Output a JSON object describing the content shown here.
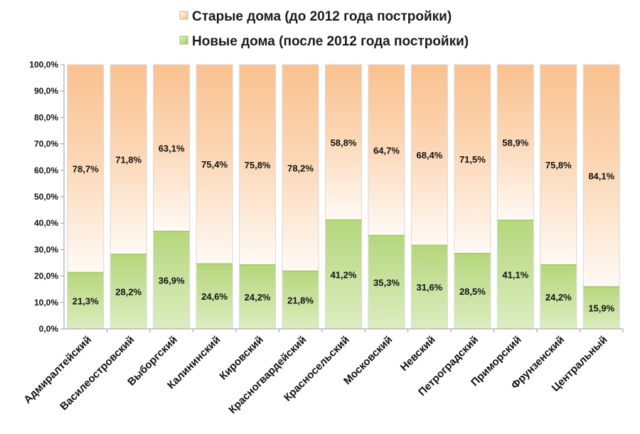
{
  "chart_data": {
    "type": "bar",
    "stacked": true,
    "percent": true,
    "categories": [
      "Адмиралтейский",
      "Василеостровский",
      "Выборгский",
      "Калининский",
      "Кировский",
      "Красногвардейский",
      "Красносельский",
      "Московский",
      "Невский",
      "Петроградский",
      "Приморский",
      "Фрунзенский",
      "Центральный"
    ],
    "series": [
      {
        "name": "Новые дома (после 2012 года постройки)",
        "values": [
          21.3,
          28.2,
          36.9,
          24.6,
          24.2,
          21.8,
          41.2,
          35.3,
          31.6,
          28.5,
          41.1,
          24.2,
          15.9
        ],
        "labels": [
          "21,3%",
          "28,2%",
          "36,9%",
          "24,6%",
          "24,2%",
          "21,8%",
          "41,2%",
          "35,3%",
          "31,6%",
          "28,5%",
          "41,1%",
          "24,2%",
          "15,9%"
        ],
        "color": "#c9e19c"
      },
      {
        "name": "Старые дома (до 2012 года постройки)",
        "values": [
          78.7,
          71.8,
          63.1,
          75.4,
          75.8,
          78.2,
          58.8,
          64.7,
          68.4,
          71.5,
          58.9,
          75.8,
          84.1
        ],
        "labels": [
          "78,7%",
          "71,8%",
          "63,1%",
          "75,4%",
          "75,8%",
          "78,2%",
          "58,8%",
          "64,7%",
          "68,4%",
          "71,5%",
          "58,9%",
          "75,8%",
          "84,1%"
        ],
        "color": "#fbcfa6"
      }
    ],
    "legend": [
      "Старые дома (до 2012 года постройки)",
      "Новые дома (после 2012 года постройки)"
    ],
    "legend_position": "top",
    "ylim": [
      0,
      100
    ],
    "yticks": [
      "0,0%",
      "10,0%",
      "20,0%",
      "30,0%",
      "40,0%",
      "50,0%",
      "60,0%",
      "70,0%",
      "80,0%",
      "90,0%",
      "100,0%"
    ],
    "grid": false
  }
}
